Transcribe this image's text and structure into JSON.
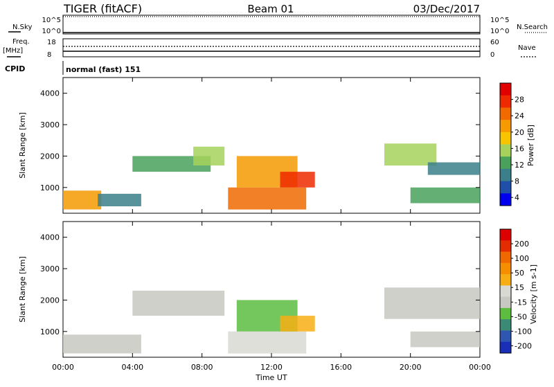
{
  "header": {
    "left_title": "TIGER (fitACF)",
    "center_title": "Beam 01",
    "right_title": "03/Dec/2017"
  },
  "labels": {
    "nsky": "N.Sky",
    "nsearch": "N.Search",
    "freq_line1": "Freq.",
    "freq_line2": "[MHz]",
    "nave": "Nave",
    "cpid": "CPID",
    "cpid_text": "normal (fast) 151"
  },
  "status_panel": {
    "noise_ticks_left": [
      "10^5",
      "10^0"
    ],
    "noise_ticks_right": [
      "10^5",
      "10^0"
    ],
    "freq_ticks": [
      "18",
      "8"
    ],
    "nave_ticks": [
      "60",
      "0"
    ]
  },
  "colors": {
    "power_scale": [
      "#0000ee",
      "#1f4fa8",
      "#3b7f8a",
      "#49a15a",
      "#a6d25c",
      "#f6c500",
      "#f59a00",
      "#f06a00",
      "#ef2a00",
      "#e00000"
    ],
    "velocity_scale": [
      "#1a2fb8",
      "#2f56b0",
      "#3a8a76",
      "#5cbd3f",
      "#c8c8c2",
      "#d9d9d4",
      "#f7ae14",
      "#f58e00",
      "#f06800",
      "#e52b00",
      "#dd0000"
    ]
  },
  "chart_data": [
    {
      "type": "heatmap",
      "name": "power",
      "xlabel": "Time UT",
      "ylabel": "Slant Range [km]",
      "colorbar_label": "Power [dB]",
      "colorbar_ticks": [
        "28",
        "24",
        "20",
        "16",
        "12",
        "8",
        "4"
      ],
      "x_ticks": [
        "00:00",
        "04:00",
        "08:00",
        "12:00",
        "16:00",
        "20:00",
        "00:00"
      ],
      "y_ticks": [
        "4000",
        "3000",
        "2000",
        "1000"
      ],
      "xlim_hours": [
        0,
        24
      ],
      "ylim_km": [
        180,
        4500
      ],
      "regions": [
        {
          "t0": 0.0,
          "t1": 2.2,
          "r0": 300,
          "r1": 900,
          "power": 20
        },
        {
          "t0": 2.0,
          "t1": 4.5,
          "r0": 400,
          "r1": 800,
          "power": 8
        },
        {
          "t0": 4.0,
          "t1": 8.5,
          "r0": 1500,
          "r1": 2000,
          "power": 10
        },
        {
          "t0": 7.5,
          "t1": 9.3,
          "r0": 1700,
          "r1": 2300,
          "power": 14
        },
        {
          "t0": 9.5,
          "t1": 14.0,
          "r0": 300,
          "r1": 1000,
          "power": 24
        },
        {
          "t0": 10.0,
          "t1": 13.5,
          "r0": 1000,
          "r1": 2000,
          "power": 20
        },
        {
          "t0": 12.5,
          "t1": 14.5,
          "r0": 1000,
          "r1": 1500,
          "power": 26
        },
        {
          "t0": 18.5,
          "t1": 21.5,
          "r0": 1700,
          "r1": 2400,
          "power": 14
        },
        {
          "t0": 21.0,
          "t1": 24.0,
          "r0": 1400,
          "r1": 1800,
          "power": 8
        },
        {
          "t0": 20.0,
          "t1": 24.0,
          "r0": 500,
          "r1": 1000,
          "power": 12
        }
      ]
    },
    {
      "type": "heatmap",
      "name": "velocity",
      "xlabel": "Time UT",
      "ylabel": "Slant Range [km]",
      "colorbar_label": "Velocity [m s-1]",
      "colorbar_ticks": [
        "200",
        "100",
        "50",
        "15",
        "-15",
        "-50",
        "-100",
        "-200"
      ],
      "x_ticks": [
        "00:00",
        "04:00",
        "08:00",
        "12:00",
        "16:00",
        "20:00",
        "00:00"
      ],
      "y_ticks": [
        "4000",
        "3000",
        "2000",
        "1000"
      ],
      "xlim_hours": [
        0,
        24
      ],
      "ylim_km": [
        180,
        4500
      ],
      "regions": [
        {
          "t0": 0.0,
          "t1": 4.5,
          "r0": 300,
          "r1": 900,
          "velocity": 0
        },
        {
          "t0": 4.0,
          "t1": 9.3,
          "r0": 1500,
          "r1": 2300,
          "velocity": 0
        },
        {
          "t0": 9.5,
          "t1": 14.0,
          "r0": 300,
          "r1": 1000,
          "velocity": -40
        },
        {
          "t0": 10.0,
          "t1": 13.5,
          "r0": 1000,
          "r1": 2000,
          "velocity": 5
        },
        {
          "t0": 12.5,
          "t1": 14.5,
          "r0": 1000,
          "r1": 1500,
          "velocity": -60
        },
        {
          "t0": 18.5,
          "t1": 24.0,
          "r0": 1400,
          "r1": 2400,
          "velocity": 0
        },
        {
          "t0": 20.0,
          "t1": 24.0,
          "r0": 500,
          "r1": 1000,
          "velocity": 0
        }
      ]
    }
  ]
}
